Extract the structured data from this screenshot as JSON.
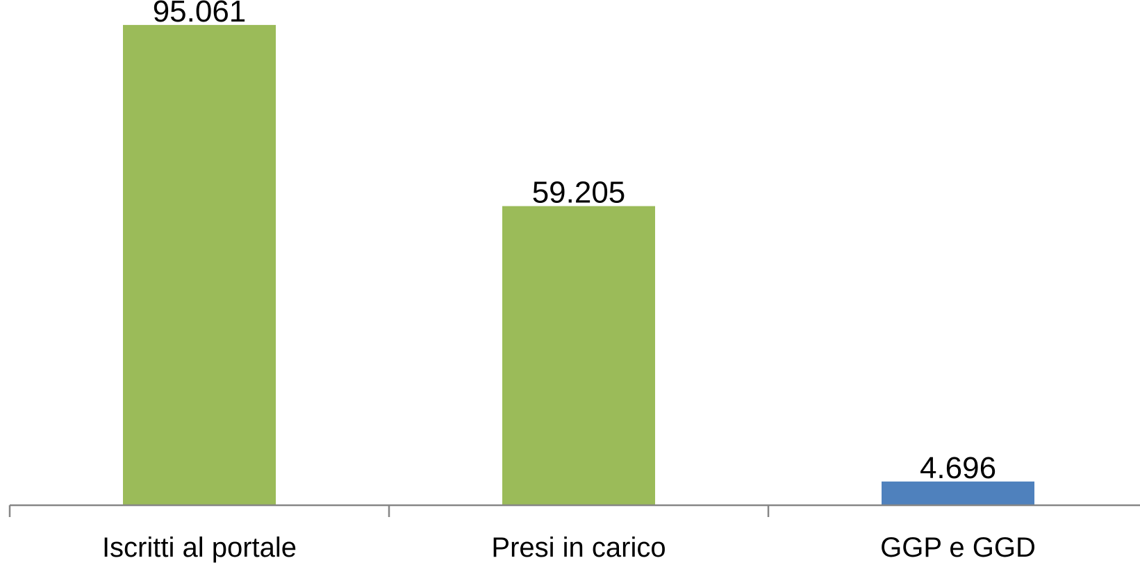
{
  "chart_data": {
    "type": "bar",
    "categories": [
      "Iscritti al portale",
      "Presi in carico",
      "GGP e GGD"
    ],
    "values": [
      95061,
      59205,
      4696
    ],
    "value_labels": [
      "95.061",
      "59.205",
      "4.696"
    ],
    "bar_colors": [
      "#9bbb59",
      "#9bbb59",
      "#4f81bd"
    ],
    "axis_color": "#868686",
    "title": "",
    "xlabel": "",
    "ylabel": "",
    "ylim": [
      0,
      100000
    ],
    "grid": false,
    "legend": "none"
  }
}
